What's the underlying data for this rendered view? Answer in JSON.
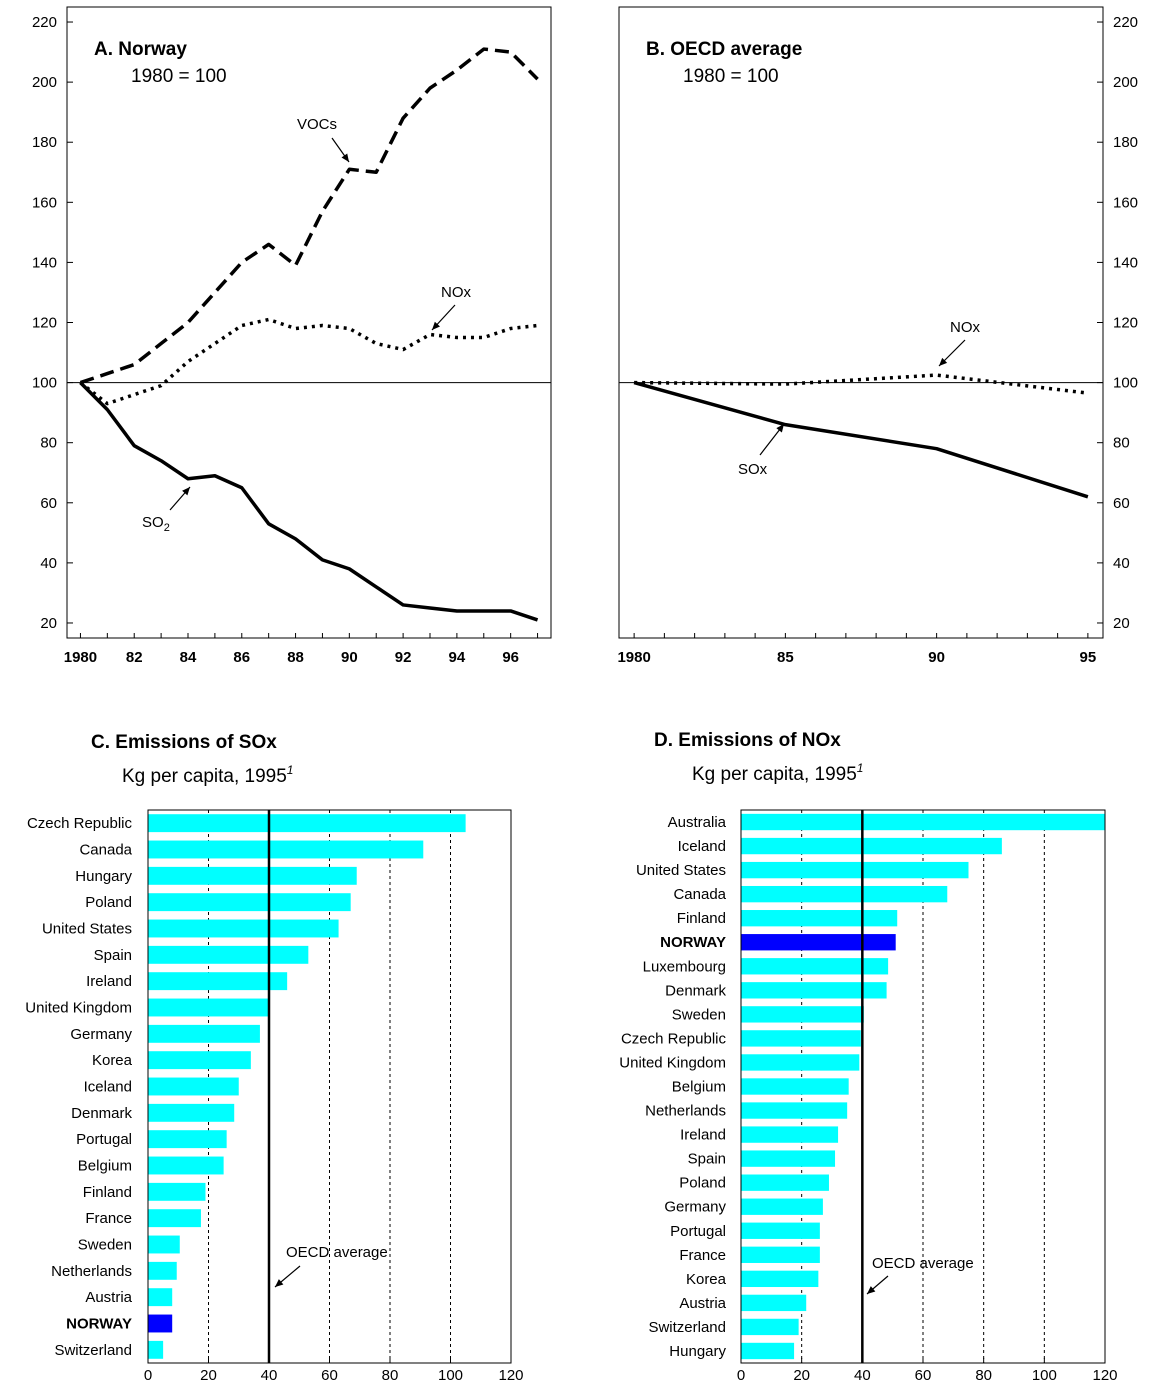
{
  "chart_data": [
    {
      "id": "A",
      "type": "line",
      "title": "A.  Norway",
      "subtitle": "1980 = 100",
      "ylim": [
        15,
        225
      ],
      "yticks": [
        20,
        40,
        60,
        80,
        100,
        120,
        140,
        160,
        180,
        200,
        220
      ],
      "xlim": [
        1979.5,
        1997.5
      ],
      "xticks": [
        1980,
        1982,
        1984,
        1986,
        1988,
        1990,
        1992,
        1994,
        1996
      ],
      "xtick_labels": [
        "1980",
        "82",
        "84",
        "86",
        "88",
        "90",
        "92",
        "94",
        "96"
      ],
      "baseline": 100,
      "series": [
        {
          "name": "VOCs",
          "style": "dashed",
          "x": [
            1980,
            1981,
            1982,
            1983,
            1984,
            1985,
            1986,
            1987,
            1988,
            1989,
            1990,
            1991,
            1992,
            1993,
            1994,
            1995,
            1996,
            1997
          ],
          "y": [
            100,
            103,
            106,
            113,
            120,
            130,
            140,
            146,
            139,
            157,
            171,
            170,
            188,
            198,
            204,
            211,
            210,
            201
          ]
        },
        {
          "name": "NOx",
          "style": "dotted",
          "x": [
            1980,
            1981,
            1982,
            1983,
            1984,
            1985,
            1986,
            1987,
            1988,
            1989,
            1990,
            1991,
            1992,
            1993,
            1994,
            1995,
            1996,
            1997
          ],
          "y": [
            100,
            93,
            96,
            99,
            107,
            113,
            119,
            121,
            118,
            119,
            118,
            113,
            111,
            116,
            115,
            115,
            118,
            119
          ]
        },
        {
          "name": "SO2",
          "style": "solid",
          "x": [
            1980,
            1981,
            1982,
            1983,
            1984,
            1985,
            1986,
            1987,
            1988,
            1989,
            1990,
            1991,
            1992,
            1993,
            1994,
            1995,
            1996,
            1997
          ],
          "y": [
            100,
            91,
            79,
            74,
            68,
            69,
            65,
            53,
            48,
            41,
            38,
            32,
            26,
            25,
            24,
            24,
            24,
            21
          ]
        }
      ],
      "annotations": [
        {
          "text": "VOCs",
          "sub": "",
          "series": "VOCs",
          "x": 1990
        },
        {
          "text": "NOx",
          "sub": "",
          "series": "NOx",
          "x": 1993
        },
        {
          "text": "SO",
          "sub": "2",
          "series": "SO2",
          "x": 1984
        }
      ]
    },
    {
      "id": "B",
      "type": "line",
      "title": "B.  OECD average",
      "subtitle": "1980 = 100",
      "ylim": [
        15,
        225
      ],
      "yticks": [
        20,
        40,
        60,
        80,
        100,
        120,
        140,
        160,
        180,
        200,
        220
      ],
      "xlim": [
        1979.5,
        1995.5
      ],
      "xticks": [
        1980,
        1985,
        1990,
        1995
      ],
      "xtick_labels": [
        "1980",
        "85",
        "90",
        "95"
      ],
      "baseline": 100,
      "series": [
        {
          "name": "NOx",
          "style": "dotted",
          "x": [
            1980,
            1985,
            1990,
            1995
          ],
          "y": [
            100,
            99.5,
            102.5,
            96.5
          ]
        },
        {
          "name": "SOx",
          "style": "solid",
          "x": [
            1980,
            1985,
            1990,
            1995
          ],
          "y": [
            100,
            86,
            78,
            62
          ]
        }
      ],
      "annotations": [
        {
          "text": "NOx",
          "sub": "",
          "series": "NOx",
          "x": 1990
        },
        {
          "text": "SOx",
          "sub": "",
          "series": "SOx",
          "x": 1985
        }
      ]
    },
    {
      "id": "C",
      "type": "bar",
      "orientation": "horizontal",
      "title": "C.  Emissions of SOx",
      "subtitle": "Kg per capita, 1995",
      "subtitle_sup": "1",
      "xlim": [
        0,
        120
      ],
      "xticks": [
        0,
        20,
        40,
        60,
        80,
        100,
        120
      ],
      "reference_line": {
        "value": 40,
        "label": "OECD average"
      },
      "highlight": "NORWAY",
      "categories": [
        "Czech Republic",
        "Canada",
        "Hungary",
        "Poland",
        "United States",
        "Spain",
        "Ireland",
        "United Kingdom",
        "Germany",
        "Korea",
        "Iceland",
        "Denmark",
        "Portugal",
        "Belgium",
        "Finland",
        "France",
        "Sweden",
        "Netherlands",
        "Austria",
        "NORWAY",
        "Switzerland"
      ],
      "values": [
        105,
        91,
        69,
        67,
        63,
        53,
        46,
        40,
        37,
        34,
        30,
        28.5,
        26,
        25,
        19,
        17.5,
        10.5,
        9.5,
        8,
        8,
        5
      ]
    },
    {
      "id": "D",
      "type": "bar",
      "orientation": "horizontal",
      "title": "D.  Emissions of NOx",
      "subtitle": "Kg per capita, 1995",
      "subtitle_sup": "1",
      "xlim": [
        0,
        120
      ],
      "xticks": [
        0,
        20,
        40,
        60,
        80,
        100,
        120
      ],
      "reference_line": {
        "value": 40,
        "label": "OECD average"
      },
      "highlight": "NORWAY",
      "categories": [
        "Australia",
        "Iceland",
        "United States",
        "Canada",
        "Finland",
        "NORWAY",
        "Luxembourg",
        "Denmark",
        "Sweden",
        "Czech Republic",
        "United Kingdom",
        "Belgium",
        "Netherlands",
        "Ireland",
        "Spain",
        "Poland",
        "Germany",
        "Portugal",
        "France",
        "Korea",
        "Austria",
        "Switzerland",
        "Hungary"
      ],
      "values": [
        120,
        86,
        75,
        68,
        51.5,
        51,
        48.5,
        48,
        40.5,
        39.5,
        39,
        35.5,
        35,
        32,
        31,
        29,
        27,
        26,
        26,
        25.5,
        21.5,
        19,
        17.5
      ]
    }
  ],
  "colors": {
    "bar": "#00ffff",
    "highlight_bar": "#0000ff",
    "line": "#000000"
  }
}
